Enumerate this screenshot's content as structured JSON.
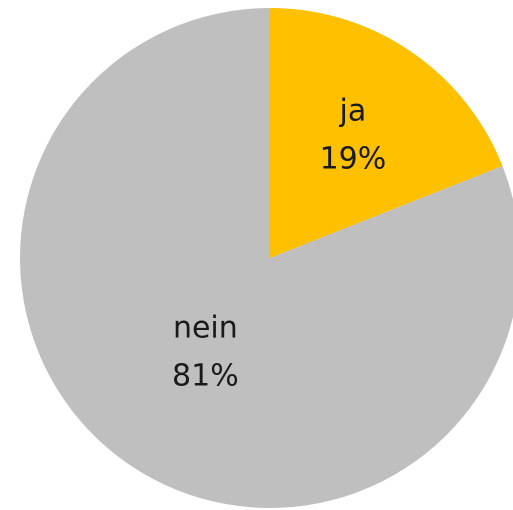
{
  "chart_data": {
    "type": "pie",
    "categories": [
      "ja",
      "nein"
    ],
    "values": [
      19,
      81
    ],
    "value_labels": [
      "19%",
      "81%"
    ],
    "colors": [
      "#ffc000",
      "#bfbfbf"
    ]
  }
}
